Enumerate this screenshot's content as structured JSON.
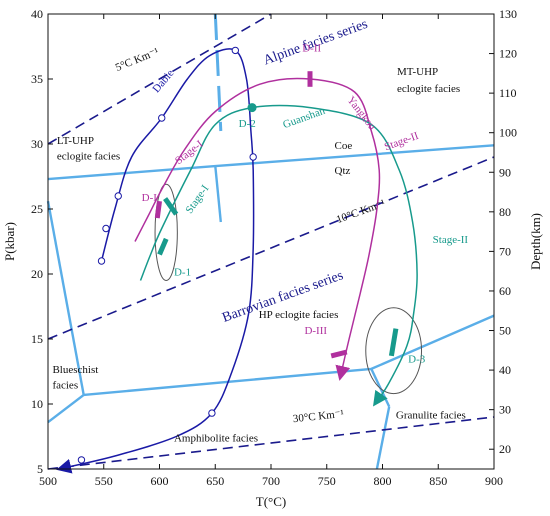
{
  "chart_data": {
    "type": "line",
    "title": "",
    "xlabel": "T(°C)",
    "ylabel": "P(kbar)",
    "ylabel_right": "Depth(km)",
    "xlim": [
      500,
      900
    ],
    "ylim": [
      5,
      40
    ],
    "x_ticks": [
      500,
      550,
      600,
      650,
      700,
      750,
      800,
      850,
      900
    ],
    "y_ticks": [
      5,
      10,
      15,
      20,
      25,
      30,
      35,
      40
    ],
    "right_ylim": [
      15,
      130
    ],
    "right_ticks": [
      20,
      30,
      40,
      50,
      60,
      70,
      80,
      90,
      100,
      110,
      120,
      130
    ],
    "colors": {
      "facies": "#5aaee8",
      "gradient": "#1a1a8c",
      "dabie": "#1a1aa6",
      "yangkou": "#b0309e",
      "guanshan": "#179a8c"
    },
    "facies_boundaries": [
      {
        "name": "lt-uhp-boundary",
        "points": [
          [
            500,
            27.3
          ],
          [
            650,
            28.3
          ],
          [
            900,
            29.9
          ]
        ]
      },
      {
        "name": "coe-qtz-segment",
        "points": [
          [
            650,
            28.3
          ],
          [
            655,
            24.0
          ]
        ]
      },
      {
        "name": "blueschist-left",
        "points": [
          [
            500,
            25.6
          ],
          [
            532,
            10.7
          ]
        ]
      },
      {
        "name": "blueschist-bottom",
        "points": [
          [
            500,
            8.6
          ],
          [
            532,
            10.7
          ]
        ]
      },
      {
        "name": "hp-eclogite-lower",
        "points": [
          [
            532,
            10.7
          ],
          [
            790,
            12.7
          ],
          [
            900,
            16.8
          ]
        ]
      },
      {
        "name": "granulite-upper",
        "points": [
          [
            790,
            12.7
          ],
          [
            806,
            9.8
          ]
        ]
      },
      {
        "name": "granulite-lower",
        "points": [
          [
            806,
            9.8
          ],
          [
            795,
            5.0
          ]
        ]
      }
    ],
    "geotherm_lines": [
      {
        "label": "5°C Km⁻¹",
        "points": [
          [
            500,
            30.0
          ],
          [
            700,
            40.0
          ]
        ]
      },
      {
        "label": "10°C Km⁻¹",
        "points": [
          [
            500,
            15.0
          ],
          [
            900,
            29.0
          ]
        ]
      },
      {
        "label": "30°C Km⁻¹",
        "points": [
          [
            500,
            5.0
          ],
          [
            900,
            9.0
          ]
        ]
      }
    ],
    "dashed_boundary": {
      "points": [
        [
          650,
          40.0
        ],
        [
          655,
          31.0
        ]
      ]
    },
    "series": [
      {
        "name": "Dabie",
        "points": [
          [
            548,
            21.0
          ],
          [
            560,
            25.0
          ],
          [
            575,
            29.0
          ],
          [
            602,
            32.0
          ],
          [
            625,
            35.0
          ],
          [
            645,
            36.8
          ],
          [
            668,
            37.2
          ],
          [
            678,
            35.0
          ],
          [
            682,
            31.0
          ],
          [
            684,
            28.0
          ],
          [
            684,
            22.0
          ],
          [
            680,
            17.0
          ],
          [
            665,
            12.5
          ],
          [
            647,
            9.3
          ],
          [
            615,
            7.5
          ],
          [
            560,
            6.0
          ],
          [
            510,
            5.0
          ]
        ],
        "markers": [
          [
            548,
            21.0
          ],
          [
            552,
            23.5
          ],
          [
            563,
            26.0
          ],
          [
            602,
            32.0
          ],
          [
            668,
            37.2
          ],
          [
            684,
            29.0
          ],
          [
            647,
            9.3
          ],
          [
            530,
            5.7
          ]
        ]
      },
      {
        "name": "Yangkou",
        "points": [
          [
            578,
            22.5
          ],
          [
            590,
            24.5
          ],
          [
            602,
            26.5
          ],
          [
            622,
            29.5
          ],
          [
            650,
            32.5
          ],
          [
            690,
            34.6
          ],
          [
            735,
            35.0
          ],
          [
            775,
            34.0
          ],
          [
            790,
            31.0
          ],
          [
            797,
            28.0
          ],
          [
            795,
            25.0
          ],
          [
            788,
            21.5
          ],
          [
            780,
            18.5
          ],
          [
            770,
            15.0
          ],
          [
            762,
            12.0
          ]
        ]
      },
      {
        "name": "Guanshan",
        "points": [
          [
            583,
            19.5
          ],
          [
            592,
            21.5
          ],
          [
            602,
            23.5
          ],
          [
            628,
            28.0
          ],
          [
            650,
            31.5
          ],
          [
            683,
            32.8
          ],
          [
            735,
            32.8
          ],
          [
            790,
            31.5
          ],
          [
            815,
            28.0
          ],
          [
            827,
            24.0
          ],
          [
            831,
            20.0
          ],
          [
            828,
            17.0
          ],
          [
            822,
            14.5
          ],
          [
            805,
            11.5
          ],
          [
            793,
            10.0
          ]
        ]
      }
    ],
    "stage_markers": [
      {
        "color": "#b0309e",
        "points": [
          [
            735,
            34.4
          ],
          [
            735,
            35.6
          ]
        ]
      },
      {
        "color": "#b0309e",
        "points": [
          [
            598,
            24.3
          ],
          [
            600,
            25.6
          ]
        ]
      },
      {
        "color": "#b0309e",
        "points": [
          [
            754,
            13.7
          ],
          [
            768,
            14.0
          ]
        ]
      },
      {
        "color": "#179a8c",
        "points": [
          [
            605,
            25.8
          ],
          [
            615,
            24.6
          ]
        ]
      },
      {
        "color": "#179a8c",
        "points": [
          [
            600,
            21.5
          ],
          [
            606,
            22.7
          ]
        ]
      },
      {
        "color": "#179a8c",
        "points": [
          [
            808,
            13.7
          ],
          [
            812,
            15.8
          ]
        ]
      }
    ],
    "peak_point": {
      "x": 683,
      "y": 32.8,
      "color": "#179a8c"
    },
    "ellipses": [
      {
        "center": [
          606,
          23.2
        ],
        "rx_T": 10,
        "ry_P": 3.7
      },
      {
        "center": [
          810,
          14.1
        ],
        "rx_T": 25,
        "ry_P": 3.3
      }
    ],
    "annotations": [
      {
        "text": "Alpine facies series",
        "x": 695,
        "y": 36.1,
        "rotate": -20,
        "color": "#1a1a8c",
        "size": 14
      },
      {
        "text": "Barrovian facies series",
        "x": 658,
        "y": 16.3,
        "rotate": -20,
        "color": "#1a1a8c",
        "size": 14
      },
      {
        "text": "MT-UHP",
        "x": 813,
        "y": 35.3,
        "color": "#111",
        "size": 11
      },
      {
        "text": "eclogite facies",
        "x": 813,
        "y": 34.0,
        "color": "#111",
        "size": 11
      },
      {
        "text": "LT-UHP",
        "x": 508,
        "y": 30.0,
        "color": "#111",
        "size": 11
      },
      {
        "text": "eclogite facies",
        "x": 508,
        "y": 28.8,
        "color": "#111",
        "size": 11
      },
      {
        "text": "Coe",
        "x": 757,
        "y": 29.6,
        "color": "#111",
        "size": 11
      },
      {
        "text": "Qtz",
        "x": 757,
        "y": 27.7,
        "color": "#111",
        "size": 11
      },
      {
        "text": "HP eclogite facies",
        "x": 689,
        "y": 16.6,
        "color": "#111",
        "size": 11
      },
      {
        "text": "Blueschist",
        "x": 504,
        "y": 12.4,
        "color": "#111",
        "size": 11
      },
      {
        "text": "facies",
        "x": 504,
        "y": 11.2,
        "color": "#111",
        "size": 11
      },
      {
        "text": "Granulite facies",
        "x": 812,
        "y": 8.9,
        "color": "#111",
        "size": 11
      },
      {
        "text": "Amphibolite facies",
        "x": 613,
        "y": 7.1,
        "color": "#111",
        "size": 11
      },
      {
        "text": "5°C Km⁻¹",
        "x": 562,
        "y": 35.6,
        "rotate": -22,
        "color": "#111",
        "size": 11
      },
      {
        "text": "10°C Km⁻¹",
        "x": 760,
        "y": 23.9,
        "rotate": -20,
        "color": "#111",
        "size": 11
      },
      {
        "text": "30°C Km⁻¹",
        "x": 720,
        "y": 8.6,
        "rotate": -6,
        "color": "#111",
        "size": 11
      },
      {
        "text": "Dabie",
        "x": 598,
        "y": 33.9,
        "rotate": -50,
        "color": "#1a1aa6",
        "size": 11
      },
      {
        "text": "Yangkou",
        "x": 768,
        "y": 33.4,
        "rotate": 52,
        "color": "#b0309e",
        "size": 11
      },
      {
        "text": "Guanshan",
        "x": 712,
        "y": 31.2,
        "rotate": -20,
        "color": "#179a8c",
        "size": 11
      },
      {
        "text": "Stage-I",
        "x": 617,
        "y": 28.4,
        "rotate": -38,
        "color": "#b0309e",
        "size": 11
      },
      {
        "text": "Stage-I",
        "x": 628,
        "y": 24.6,
        "rotate": -55,
        "color": "#179a8c",
        "size": 11
      },
      {
        "text": "Stage-II",
        "x": 803,
        "y": 29.5,
        "rotate": -20,
        "color": "#b0309e",
        "size": 11
      },
      {
        "text": "Stage-II",
        "x": 845,
        "y": 22.4,
        "color": "#179a8c",
        "size": 11
      },
      {
        "text": "D-II",
        "x": 728,
        "y": 37.1,
        "color": "#b0309e",
        "size": 11
      },
      {
        "text": "D-2",
        "x": 671,
        "y": 31.3,
        "color": "#179a8c",
        "size": 11
      },
      {
        "text": "D-I",
        "x": 584,
        "y": 25.6,
        "color": "#b0309e",
        "size": 11
      },
      {
        "text": "D-1",
        "x": 613,
        "y": 19.9,
        "color": "#179a8c",
        "size": 11
      },
      {
        "text": "D-III",
        "x": 730,
        "y": 15.4,
        "color": "#b0309e",
        "size": 11
      },
      {
        "text": "D-3",
        "x": 823,
        "y": 13.2,
        "color": "#179a8c",
        "size": 11
      }
    ]
  }
}
